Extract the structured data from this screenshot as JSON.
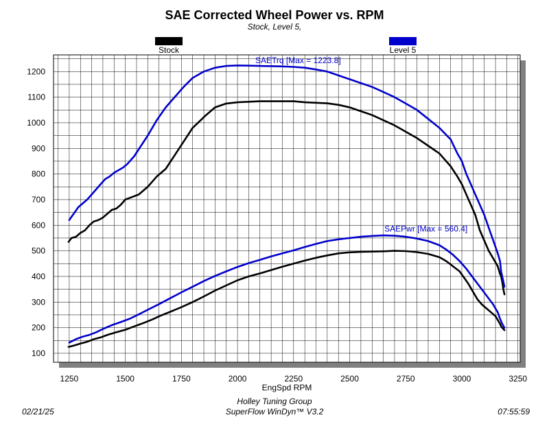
{
  "chart_data": {
    "type": "line",
    "title": "SAE Corrected Wheel Power vs. RPM",
    "subtitle": "Stock, Level 5,",
    "xlabel": "EngSpd RPM",
    "ylabel": "",
    "xlim": [
      1180,
      3260
    ],
    "ylim": [
      65,
      1265
    ],
    "x_ticks": [
      1250,
      1500,
      1750,
      2000,
      2250,
      2500,
      2750,
      3000,
      3250
    ],
    "y_ticks": [
      100,
      200,
      300,
      400,
      500,
      600,
      700,
      800,
      900,
      1000,
      1100,
      1200
    ],
    "grid": true,
    "legend": [
      {
        "name": "Stock",
        "color": "#000000",
        "position": "top-left"
      },
      {
        "name": "Level 5",
        "color": "#0000cc",
        "position": "top-right"
      }
    ],
    "annotations": [
      {
        "text": "SAETrq [Max = 1223.8]",
        "color": "#0000cc",
        "x": 2270,
        "y": 1233
      },
      {
        "text": "SAEPwr [Max = 560.4]",
        "color": "#0000cc",
        "x": 2840,
        "y": 575
      }
    ],
    "series": [
      {
        "name": "Stock",
        "curve": "SAETrq",
        "color": "#000000",
        "x": [
          1247,
          1260,
          1280,
          1300,
          1320,
          1340,
          1360,
          1380,
          1400,
          1420,
          1440,
          1460,
          1480,
          1500,
          1530,
          1560,
          1600,
          1640,
          1680,
          1710,
          1740,
          1770,
          1800,
          1830,
          1860,
          1900,
          1950,
          2000,
          2050,
          2100,
          2150,
          2200,
          2250,
          2300,
          2350,
          2400,
          2450,
          2500,
          2550,
          2600,
          2650,
          2700,
          2750,
          2800,
          2850,
          2900,
          2950,
          2980,
          3000,
          3020,
          3040,
          3060,
          3080,
          3100,
          3120,
          3140,
          3160,
          3170,
          3175,
          3180,
          3185,
          3190
        ],
        "y": [
          535,
          550,
          555,
          570,
          580,
          600,
          615,
          620,
          630,
          645,
          660,
          665,
          680,
          700,
          710,
          720,
          750,
          790,
          820,
          860,
          900,
          940,
          980,
          1005,
          1030,
          1060,
          1075,
          1080,
          1082,
          1084,
          1084,
          1084,
          1084,
          1080,
          1078,
          1076,
          1070,
          1060,
          1045,
          1030,
          1010,
          990,
          965,
          940,
          910,
          880,
          830,
          790,
          760,
          720,
          680,
          640,
          580,
          540,
          500,
          470,
          440,
          410,
          400,
          380,
          350,
          330
        ]
      },
      {
        "name": "Level 5",
        "curve": "SAETrq",
        "color": "#0000cc",
        "x": [
          1250,
          1270,
          1290,
          1310,
          1330,
          1350,
          1370,
          1390,
          1410,
          1430,
          1450,
          1470,
          1490,
          1510,
          1540,
          1570,
          1600,
          1640,
          1680,
          1720,
          1760,
          1800,
          1850,
          1900,
          1950,
          2000,
          2050,
          2100,
          2150,
          2200,
          2250,
          2300,
          2350,
          2400,
          2450,
          2500,
          2550,
          2600,
          2650,
          2700,
          2750,
          2800,
          2850,
          2900,
          2950,
          2980,
          3000,
          3020,
          3040,
          3060,
          3080,
          3100,
          3120,
          3140,
          3160,
          3170,
          3175,
          3180,
          3185,
          3190
        ],
        "y": [
          620,
          645,
          670,
          685,
          700,
          720,
          740,
          760,
          780,
          790,
          805,
          815,
          825,
          840,
          870,
          910,
          950,
          1010,
          1060,
          1100,
          1140,
          1175,
          1200,
          1215,
          1222,
          1223.8,
          1223,
          1222,
          1221,
          1220,
          1218,
          1215,
          1208,
          1200,
          1185,
          1170,
          1155,
          1140,
          1120,
          1100,
          1075,
          1050,
          1015,
          980,
          935,
          880,
          850,
          800,
          760,
          720,
          680,
          640,
          590,
          540,
          490,
          460,
          420,
          400,
          380,
          360
        ]
      },
      {
        "name": "Stock",
        "curve": "SAEPwr",
        "color": "#000000",
        "x": [
          1247,
          1270,
          1300,
          1330,
          1360,
          1390,
          1420,
          1460,
          1500,
          1540,
          1580,
          1620,
          1660,
          1700,
          1750,
          1800,
          1850,
          1900,
          1950,
          2000,
          2050,
          2100,
          2150,
          2200,
          2250,
          2300,
          2350,
          2400,
          2450,
          2500,
          2550,
          2600,
          2650,
          2700,
          2750,
          2800,
          2850,
          2900,
          2930,
          2960,
          2990,
          3010,
          3030,
          3050,
          3070,
          3090,
          3110,
          3130,
          3150,
          3160,
          3170,
          3175,
          3180,
          3185,
          3190
        ],
        "y": [
          125,
          130,
          138,
          145,
          155,
          162,
          172,
          182,
          192,
          205,
          218,
          232,
          248,
          262,
          280,
          300,
          322,
          345,
          365,
          385,
          400,
          412,
          425,
          438,
          450,
          462,
          473,
          482,
          490,
          494,
          496,
          497,
          498,
          500,
          499,
          495,
          488,
          475,
          460,
          440,
          420,
          395,
          370,
          340,
          310,
          290,
          275,
          260,
          245,
          230,
          215,
          205,
          200,
          195,
          190
        ]
      },
      {
        "name": "Level 5",
        "curve": "SAEPwr",
        "color": "#0000cc",
        "x": [
          1250,
          1280,
          1310,
          1340,
          1370,
          1400,
          1440,
          1480,
          1520,
          1560,
          1600,
          1650,
          1700,
          1750,
          1800,
          1850,
          1900,
          1950,
          2000,
          2050,
          2100,
          2150,
          2200,
          2250,
          2300,
          2350,
          2400,
          2450,
          2500,
          2550,
          2600,
          2650,
          2700,
          2750,
          2800,
          2850,
          2900,
          2930,
          2960,
          2990,
          3020,
          3050,
          3080,
          3110,
          3140,
          3160,
          3170,
          3180,
          3190
        ],
        "y": [
          142,
          155,
          165,
          172,
          182,
          195,
          210,
          222,
          235,
          252,
          270,
          292,
          315,
          338,
          360,
          382,
          402,
          420,
          437,
          452,
          465,
          478,
          490,
          502,
          515,
          527,
          538,
          545,
          550,
          555,
          558,
          560.4,
          559,
          555,
          548,
          538,
          522,
          505,
          485,
          460,
          430,
          395,
          360,
          325,
          290,
          260,
          235,
          215,
          200
        ]
      }
    ]
  },
  "footer": {
    "date": "02/21/25",
    "company": "Holley Tuning Group",
    "software": "SuperFlow WinDyn™ V3.2",
    "time": "07:55:59"
  }
}
